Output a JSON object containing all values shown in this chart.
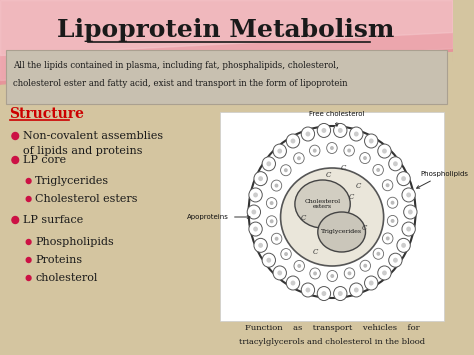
{
  "title": "Lipoprotein Metabolism",
  "slide_bg": "#d4c5a0",
  "title_color": "#1a1a1a",
  "title_fontsize": 18,
  "info_box_text_line1": "All the lipids contained in plasma, including fat, phosphalipids, cholesterol,",
  "info_box_text_line2": "cholesterol ester and fatty acid, exist and transport in the form of lipoprotein",
  "structure_label": "Structure",
  "structure_color": "#cc0000",
  "bullet_color": "#cc1144",
  "bullet_items": [
    {
      "text": "Non-covalent assemblies\nof lipids and proteins",
      "level": 0
    },
    {
      "text": "LP core",
      "level": 0
    },
    {
      "text": "Triglycerides",
      "level": 1
    },
    {
      "text": "Cholesterol esters",
      "level": 1
    },
    {
      "text": "LP surface",
      "level": 0
    },
    {
      "text": "Phospholipids",
      "level": 1
    },
    {
      "text": "Proteins",
      "level": 1
    },
    {
      "text": "cholesterol",
      "level": 1
    }
  ],
  "caption_line1": "Function    as    transport    vehicles    for",
  "caption_line2": "triacylglycerols and cholesterol in the blood",
  "diagram_labels": {
    "free_cholesterol": "Free cholesterol",
    "phospholipids": "Phospholipids",
    "apoproteins": "Apoproteins",
    "cholesterol_esters": "Cholesterol\nesters",
    "triglycerides": "Triglycerides"
  }
}
